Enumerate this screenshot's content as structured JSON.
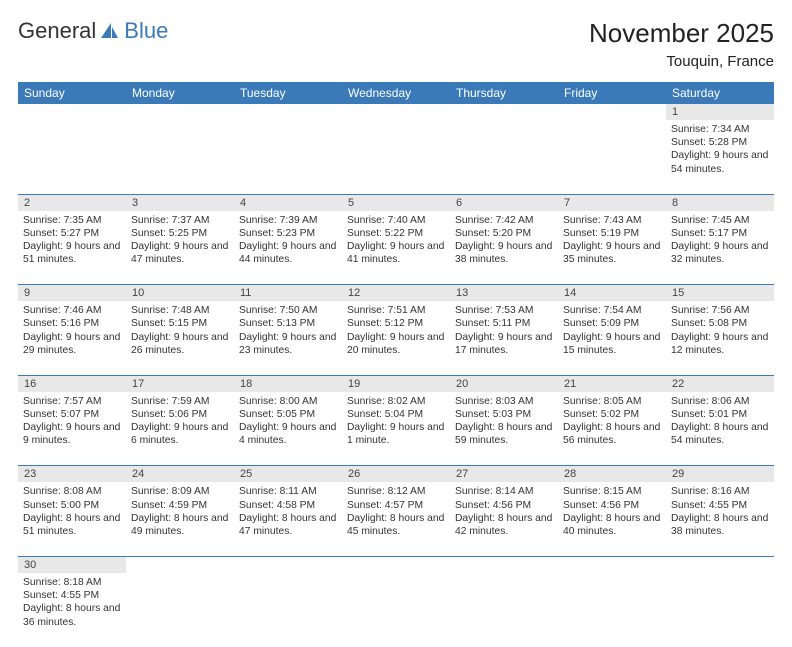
{
  "logo": {
    "part1": "General",
    "part2": "Blue"
  },
  "title": "November 2025",
  "location": "Touquin, France",
  "colors": {
    "header_bg": "#3b7ab8",
    "header_fg": "#ffffff",
    "daynum_bg": "#e8e8e8",
    "row_border": "#3b7ab8",
    "text": "#333333",
    "logo_accent": "#3b7ab8"
  },
  "weekdays": [
    "Sunday",
    "Monday",
    "Tuesday",
    "Wednesday",
    "Thursday",
    "Friday",
    "Saturday"
  ],
  "weeks": [
    {
      "nums": [
        "",
        "",
        "",
        "",
        "",
        "",
        "1"
      ],
      "info": [
        "",
        "",
        "",
        "",
        "",
        "",
        "Sunrise: 7:34 AM\nSunset: 5:28 PM\nDaylight: 9 hours and 54 minutes."
      ]
    },
    {
      "nums": [
        "2",
        "3",
        "4",
        "5",
        "6",
        "7",
        "8"
      ],
      "info": [
        "Sunrise: 7:35 AM\nSunset: 5:27 PM\nDaylight: 9 hours and 51 minutes.",
        "Sunrise: 7:37 AM\nSunset: 5:25 PM\nDaylight: 9 hours and 47 minutes.",
        "Sunrise: 7:39 AM\nSunset: 5:23 PM\nDaylight: 9 hours and 44 minutes.",
        "Sunrise: 7:40 AM\nSunset: 5:22 PM\nDaylight: 9 hours and 41 minutes.",
        "Sunrise: 7:42 AM\nSunset: 5:20 PM\nDaylight: 9 hours and 38 minutes.",
        "Sunrise: 7:43 AM\nSunset: 5:19 PM\nDaylight: 9 hours and 35 minutes.",
        "Sunrise: 7:45 AM\nSunset: 5:17 PM\nDaylight: 9 hours and 32 minutes."
      ]
    },
    {
      "nums": [
        "9",
        "10",
        "11",
        "12",
        "13",
        "14",
        "15"
      ],
      "info": [
        "Sunrise: 7:46 AM\nSunset: 5:16 PM\nDaylight: 9 hours and 29 minutes.",
        "Sunrise: 7:48 AM\nSunset: 5:15 PM\nDaylight: 9 hours and 26 minutes.",
        "Sunrise: 7:50 AM\nSunset: 5:13 PM\nDaylight: 9 hours and 23 minutes.",
        "Sunrise: 7:51 AM\nSunset: 5:12 PM\nDaylight: 9 hours and 20 minutes.",
        "Sunrise: 7:53 AM\nSunset: 5:11 PM\nDaylight: 9 hours and 17 minutes.",
        "Sunrise: 7:54 AM\nSunset: 5:09 PM\nDaylight: 9 hours and 15 minutes.",
        "Sunrise: 7:56 AM\nSunset: 5:08 PM\nDaylight: 9 hours and 12 minutes."
      ]
    },
    {
      "nums": [
        "16",
        "17",
        "18",
        "19",
        "20",
        "21",
        "22"
      ],
      "info": [
        "Sunrise: 7:57 AM\nSunset: 5:07 PM\nDaylight: 9 hours and 9 minutes.",
        "Sunrise: 7:59 AM\nSunset: 5:06 PM\nDaylight: 9 hours and 6 minutes.",
        "Sunrise: 8:00 AM\nSunset: 5:05 PM\nDaylight: 9 hours and 4 minutes.",
        "Sunrise: 8:02 AM\nSunset: 5:04 PM\nDaylight: 9 hours and 1 minute.",
        "Sunrise: 8:03 AM\nSunset: 5:03 PM\nDaylight: 8 hours and 59 minutes.",
        "Sunrise: 8:05 AM\nSunset: 5:02 PM\nDaylight: 8 hours and 56 minutes.",
        "Sunrise: 8:06 AM\nSunset: 5:01 PM\nDaylight: 8 hours and 54 minutes."
      ]
    },
    {
      "nums": [
        "23",
        "24",
        "25",
        "26",
        "27",
        "28",
        "29"
      ],
      "info": [
        "Sunrise: 8:08 AM\nSunset: 5:00 PM\nDaylight: 8 hours and 51 minutes.",
        "Sunrise: 8:09 AM\nSunset: 4:59 PM\nDaylight: 8 hours and 49 minutes.",
        "Sunrise: 8:11 AM\nSunset: 4:58 PM\nDaylight: 8 hours and 47 minutes.",
        "Sunrise: 8:12 AM\nSunset: 4:57 PM\nDaylight: 8 hours and 45 minutes.",
        "Sunrise: 8:14 AM\nSunset: 4:56 PM\nDaylight: 8 hours and 42 minutes.",
        "Sunrise: 8:15 AM\nSunset: 4:56 PM\nDaylight: 8 hours and 40 minutes.",
        "Sunrise: 8:16 AM\nSunset: 4:55 PM\nDaylight: 8 hours and 38 minutes."
      ]
    },
    {
      "nums": [
        "30",
        "",
        "",
        "",
        "",
        "",
        ""
      ],
      "info": [
        "Sunrise: 8:18 AM\nSunset: 4:55 PM\nDaylight: 8 hours and 36 minutes.",
        "",
        "",
        "",
        "",
        "",
        ""
      ]
    }
  ]
}
